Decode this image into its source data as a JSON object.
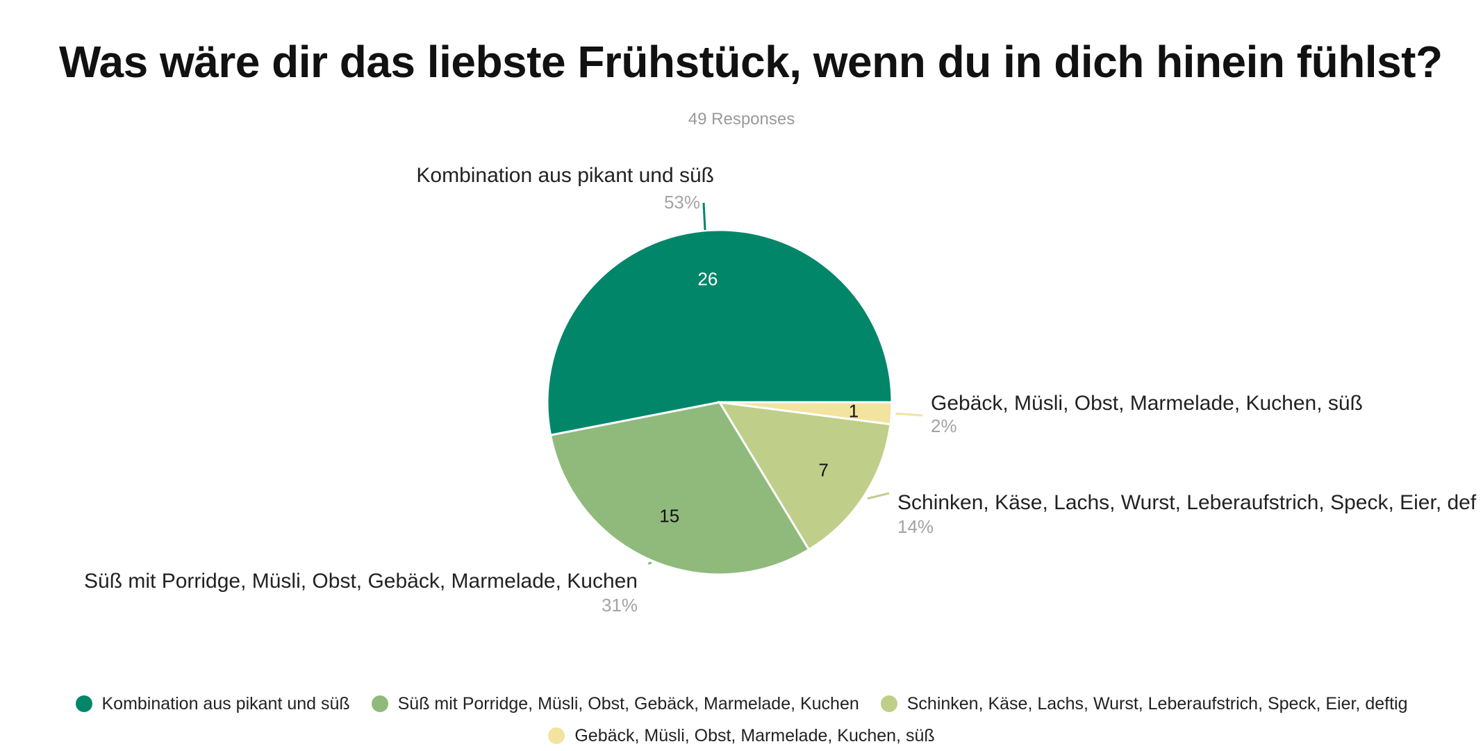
{
  "title": "Was wäre dir das liebste Frühstück, wenn du in dich hinein fühlst?",
  "subtitle": "49 Responses",
  "chart_data": {
    "type": "pie",
    "title": "Was wäre dir das liebste Frühstück, wenn du in dich hinein fühlst?",
    "subtitle": "49 Responses",
    "total": 49,
    "legend_position": "bottom",
    "slices": [
      {
        "label": "Kombination aus pikant und süß",
        "callout_label": "Kombination aus pikant und süß",
        "value": 26,
        "percent": "53%",
        "color": "#02866a",
        "value_color": "#ffffff"
      },
      {
        "label": "Süß mit Porridge, Müsli, Obst, Gebäck, Marmelade, Kuchen",
        "callout_label": "Süß mit Porridge, Müsli, Obst, Gebäck, Marmelade, Kuchen",
        "value": 15,
        "percent": "31%",
        "color": "#8fba7c",
        "value_color": "#111111"
      },
      {
        "label": "Schinken, Käse, Lachs, Wurst, Leberaufstrich, Speck, Eier, deftig",
        "callout_label": "Schinken, Käse, Lachs, Wurst, Leberaufstrich, Speck, Eier, def",
        "value": 7,
        "percent": "14%",
        "color": "#bfcf89",
        "value_color": "#111111"
      },
      {
        "label": "Gebäck, Müsli, Obst, Marmelade, Kuchen, süß",
        "callout_label": "Gebäck, Müsli, Obst, Marmelade, Kuchen, süß",
        "value": 1,
        "percent": "2%",
        "color": "#f2e3a0",
        "value_color": "#111111"
      }
    ]
  }
}
